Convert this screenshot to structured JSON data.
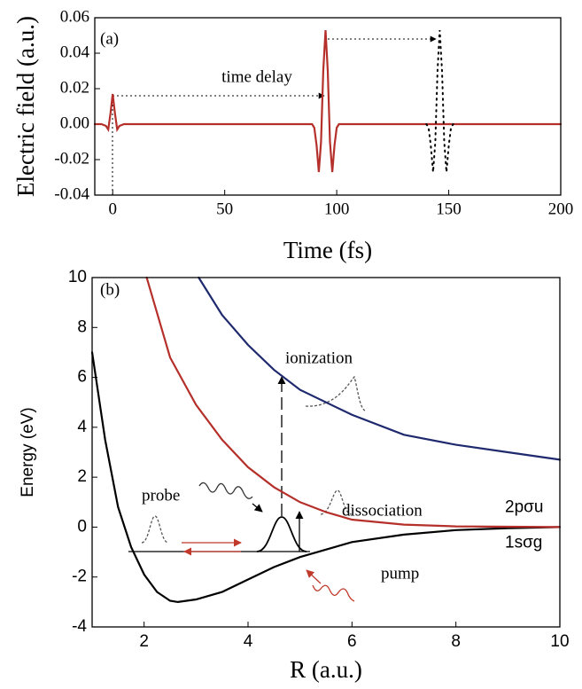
{
  "chart_data": [
    {
      "type": "line",
      "panel": "(a)",
      "xlabel": "Time (fs)",
      "ylabel": "Electric field (a.u.)",
      "xlim": [
        -8,
        200
      ],
      "xticks": [
        0,
        50,
        100,
        150,
        200
      ],
      "ylim": [
        -0.04,
        0.06
      ],
      "yticks": [
        -0.04,
        -0.02,
        {
          "value": 0,
          "label": "0.00"
        },
        0.02,
        0.04,
        0.06
      ],
      "annotations": [
        "time delay"
      ],
      "series": [
        {
          "color": "#b5302a",
          "dash": false,
          "x": [
            -8,
            -5,
            -3,
            -2,
            -1,
            0,
            1,
            2,
            3,
            5,
            8,
            20,
            60,
            86,
            89,
            90,
            91,
            92,
            93,
            94,
            95,
            96,
            97,
            98,
            99,
            100,
            101,
            104,
            120,
            200
          ],
          "values": [
            0,
            0,
            -0.001,
            -0.003,
            0.006,
            0.017,
            0.006,
            -0.003,
            -0.001,
            0,
            0,
            0,
            0,
            0,
            0,
            -0.002,
            -0.012,
            -0.027,
            -0.01,
            0.03,
            0.053,
            0.03,
            -0.01,
            -0.027,
            -0.012,
            -0.002,
            0,
            0,
            0,
            0
          ]
        },
        {
          "color": "#000000",
          "dash": true,
          "x": [
            140,
            141,
            142,
            143,
            144,
            145,
            146,
            147,
            148,
            149,
            150,
            151,
            152
          ],
          "values": [
            0,
            -0.002,
            -0.012,
            -0.027,
            -0.01,
            0.03,
            0.053,
            0.03,
            -0.01,
            -0.027,
            -0.012,
            -0.002,
            0
          ]
        }
      ]
    },
    {
      "type": "line",
      "panel": "(b)",
      "xlabel": "R (a.u.)",
      "ylabel": "Energy (eV)",
      "xlim": [
        1,
        10
      ],
      "xticks": [
        2,
        4,
        6,
        8,
        10
      ],
      "ylim": [
        -4,
        10
      ],
      "yticks": [
        -4,
        -2,
        0,
        2,
        4,
        6,
        8,
        10
      ],
      "annotations": [
        "ionization",
        "dissociation",
        "probe",
        "pump"
      ],
      "series": [
        {
          "name": "1sσg",
          "color": "#000000",
          "x": [
            1,
            1.25,
            1.5,
            1.75,
            2,
            2.25,
            2.5,
            2.65,
            3,
            3.5,
            4,
            4.5,
            5,
            6,
            7,
            8,
            9,
            10
          ],
          "values": [
            7,
            3.5,
            0.8,
            -0.8,
            -1.9,
            -2.6,
            -2.95,
            -3,
            -2.9,
            -2.6,
            -2.1,
            -1.6,
            -1.2,
            -0.6,
            -0.3,
            -0.12,
            -0.04,
            0
          ]
        },
        {
          "name": "2pσu",
          "color": "#b5302a",
          "x": [
            2.05,
            2.5,
            3,
            3.5,
            4,
            4.5,
            5,
            5.5,
            6,
            7,
            8,
            10
          ],
          "values": [
            10,
            6.8,
            4.9,
            3.5,
            2.4,
            1.6,
            1,
            0.6,
            0.3,
            0.1,
            0.03,
            0
          ]
        },
        {
          "color": "#1f2a6e",
          "x": [
            3.05,
            3.5,
            4,
            4.5,
            5,
            6,
            7,
            8,
            9,
            10
          ],
          "values": [
            10,
            8.5,
            7.3,
            6.3,
            5.5,
            4.5,
            3.7,
            3.3,
            3,
            2.7
          ]
        }
      ]
    }
  ]
}
